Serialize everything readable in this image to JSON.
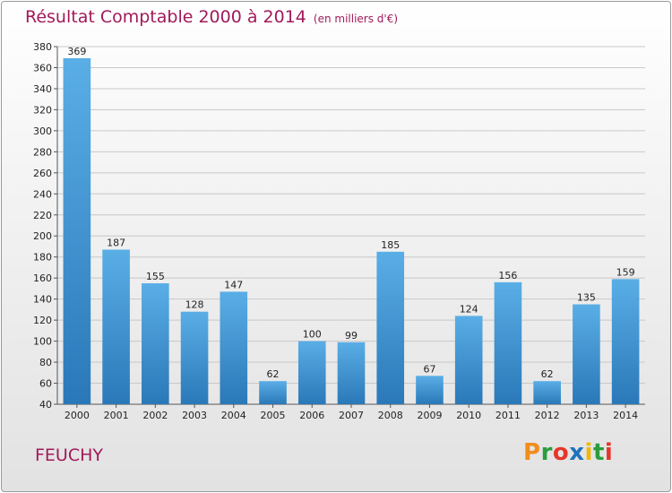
{
  "title": {
    "main": "Résultat Comptable 2000 à 2014",
    "unit": "(en milliers d'€)"
  },
  "place": "FEUCHY",
  "logo": {
    "text": "Proxiti",
    "letters": [
      "P",
      "r",
      "o",
      "x",
      "i",
      "t",
      "i"
    ],
    "colors": [
      "#f28c1c",
      "#2a9d3c",
      "#e5362b",
      "#1e73be",
      "#f2b705",
      "#2a9d3c",
      "#e5362b"
    ]
  },
  "colors": {
    "bar_top": "#5aaee6",
    "bar_bottom": "#2a78b8",
    "title": "#a11a5a",
    "grid": "#c8c8c8"
  },
  "chart_data": {
    "type": "bar",
    "title": "Résultat Comptable 2000 à 2014",
    "xlabel": "",
    "ylabel": "",
    "categories": [
      "2000",
      "2001",
      "2002",
      "2003",
      "2004",
      "2005",
      "2006",
      "2007",
      "2008",
      "2009",
      "2010",
      "2011",
      "2012",
      "2013",
      "2014"
    ],
    "values": [
      369,
      187,
      155,
      128,
      147,
      62,
      100,
      99,
      185,
      67,
      124,
      156,
      62,
      135,
      159
    ],
    "ylim": [
      40,
      380
    ],
    "yticks": [
      40,
      60,
      80,
      100,
      120,
      140,
      160,
      180,
      200,
      220,
      240,
      260,
      280,
      300,
      320,
      340,
      360,
      380
    ],
    "grid": true
  }
}
